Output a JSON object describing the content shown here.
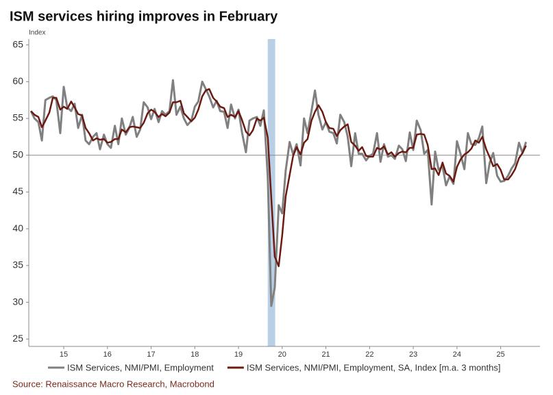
{
  "chart_data": {
    "type": "line",
    "title": "ISM services hiring improves in February",
    "y_axis_label": "Index",
    "source": "Source: Renaissance Macro Research, Macrobond",
    "legend": "bottom",
    "x": [
      2014.75,
      2014.83,
      2014.92,
      2015,
      2015.08,
      2015.17,
      2015.25,
      2015.33,
      2015.42,
      2015.5,
      2015.58,
      2015.67,
      2015.75,
      2015.83,
      2015.92,
      2016,
      2016.08,
      2016.17,
      2016.25,
      2016.33,
      2016.42,
      2016.5,
      2016.58,
      2016.67,
      2016.75,
      2016.83,
      2016.92,
      2017,
      2017.08,
      2017.17,
      2017.25,
      2017.33,
      2017.42,
      2017.5,
      2017.58,
      2017.67,
      2017.75,
      2017.83,
      2017.92,
      2018,
      2018.08,
      2018.17,
      2018.25,
      2018.33,
      2018.42,
      2018.5,
      2018.58,
      2018.67,
      2018.75,
      2018.83,
      2018.92,
      2019,
      2019.08,
      2019.17,
      2019.25,
      2019.33,
      2019.42,
      2019.5,
      2019.58,
      2019.67,
      2019.75,
      2019.83,
      2019.92,
      2020,
      2020.08,
      2020.17,
      2020.25,
      2020.33,
      2020.42,
      2020.5,
      2020.58,
      2020.67,
      2020.75,
      2020.83,
      2020.92,
      2021,
      2021.08,
      2021.17,
      2021.25,
      2021.33,
      2021.42,
      2021.5,
      2021.58,
      2021.67,
      2021.75,
      2021.83,
      2021.92,
      2022,
      2022.08,
      2022.17,
      2022.25,
      2022.33,
      2022.42,
      2022.5,
      2022.58,
      2022.67,
      2022.75,
      2022.83,
      2022.92,
      2023,
      2023.08,
      2023.17,
      2023.25,
      2023.33,
      2023.42,
      2023.5,
      2023.58,
      2023.67,
      2023.75,
      2023.83,
      2023.92,
      2024,
      2024.08,
      2024.17,
      2024.25,
      2024.33,
      2024.42,
      2024.5,
      2024.58,
      2024.67,
      2024.75,
      2024.83,
      2024.92,
      2025,
      2025.08,
      2025.17,
      2025.25,
      2025.33,
      2025.42,
      2025.5,
      2025.58,
      2025.67,
      2025.75,
      2025.83,
      2025.92,
      2026,
      2026.08
    ],
    "series": [
      {
        "name": "ISM Services, NMI/PMI, Employment",
        "color": "#808080",
        "values": [
          56,
          55,
          54.5,
          52,
          57.5,
          57.8,
          58,
          57.5,
          53,
          59.3,
          56.5,
          56,
          57,
          53.7,
          55.5,
          52,
          51.5,
          52.5,
          53,
          50.8,
          52.8,
          51.5,
          51,
          54,
          51.5,
          55,
          52.8,
          53.7,
          55.2,
          52.5,
          53.5,
          57.2,
          56.5,
          54.9,
          56.3,
          54.5,
          56,
          55.5,
          56,
          60.2,
          55.5,
          56.6,
          55,
          54.1,
          54.7,
          56.6,
          57.3,
          60,
          59,
          58,
          56.5,
          57.4,
          56,
          55.9,
          53.7,
          56.9,
          55,
          56.2,
          53.1,
          50.4,
          54.7,
          55,
          55.2,
          54,
          56.1,
          47,
          29.5,
          32,
          43.2,
          42.1,
          47.9,
          51.8,
          50.1,
          51.5,
          48.6,
          55,
          53,
          56,
          58.8,
          55.5,
          53.5,
          54.5,
          53.2,
          53,
          51.6,
          55.5,
          54.5,
          52.5,
          48.5,
          53,
          50.2,
          50.2,
          49.3,
          49.9,
          50.2,
          53,
          49.1,
          51.5,
          49.8,
          50,
          49.5,
          51.3,
          50.8,
          49.2,
          53.1,
          50.7,
          54.7,
          53.4,
          50.2,
          50.7,
          43.3,
          50.5,
          48,
          48.5,
          45.9,
          47.1,
          46.1,
          51.9,
          50.2,
          48.1,
          53,
          51.5,
          51.4,
          52.3,
          53.9,
          46.2,
          49,
          50.3,
          47.2,
          46.4,
          46.5,
          47.2,
          48.2,
          48.9,
          51.7,
          50.3,
          51.8
        ]
      },
      {
        "name": "ISM Services, NMI/PMI, Employment, SA, Index [m.a. 3 months]",
        "color": "#6b1a12",
        "values": [
          56,
          55.5,
          55.2,
          53.8,
          54.7,
          55.8,
          57.8,
          57.8,
          56.2,
          56.6,
          56.3,
          57.3,
          56.5,
          55.6,
          55.4,
          53.7,
          53,
          52,
          52.3,
          52.1,
          52.2,
          51.7,
          51.8,
          52.2,
          52.2,
          53.5,
          53.1,
          53.8,
          53.9,
          53.8,
          53.7,
          54.4,
          55.7,
          56.2,
          55.9,
          55.2,
          55.6,
          55.3,
          55.8,
          57.2,
          57.2,
          57.4,
          55.7,
          55.2,
          54.6,
          55.1,
          56.2,
          58,
          58.8,
          59,
          57.8,
          57.3,
          56.6,
          56.4,
          55.2,
          55.5,
          55.2,
          56,
          54.8,
          53.2,
          52.7,
          53.4,
          55,
          54.7,
          55.1,
          52.4,
          44.2,
          36.2,
          34.9,
          39.1,
          44.4,
          47.3,
          49.9,
          51.1,
          50.1,
          51.7,
          52.2,
          54.7,
          55.9,
          56.8,
          55.9,
          54.5,
          53.7,
          53.6,
          52.6,
          53.4,
          53.9,
          54.2,
          51.8,
          51.3,
          50.6,
          51.1,
          49.9,
          49.8,
          49.8,
          51,
          50.8,
          51.2,
          50.1,
          50.4,
          49.8,
          50.3,
          50.5,
          50.4,
          51,
          51,
          52.8,
          52.9,
          52.8,
          51.4,
          48.1,
          48.2,
          47.3,
          49,
          47.5,
          47.2,
          46.4,
          48.4,
          49.4,
          50.1,
          50.4,
          50.9,
          52,
          51.7,
          52.5,
          50.8,
          49.7,
          48.5,
          48.8,
          48,
          46.7,
          46.7,
          47.3,
          48.1,
          49.6,
          50.3,
          51.3
        ]
      }
    ],
    "xlim": [
      2014.7,
      2026.4
    ],
    "xticks": [
      {
        "value": 2015.5,
        "label": "15"
      },
      {
        "value": 2016.5,
        "label": "16"
      },
      {
        "value": 2017.5,
        "label": "17"
      },
      {
        "value": 2018.5,
        "label": "18"
      },
      {
        "value": 2019.5,
        "label": "19"
      },
      {
        "value": 2020.5,
        "label": "20"
      },
      {
        "value": 2021.5,
        "label": "21"
      },
      {
        "value": 2022.5,
        "label": "22"
      },
      {
        "value": 2023.5,
        "label": "23"
      },
      {
        "value": 2024.5,
        "label": "24"
      },
      {
        "value": 2025.5,
        "label": "25"
      }
    ],
    "ylim": [
      24,
      65.8
    ],
    "yticks": [
      25,
      30,
      35,
      40,
      45,
      50,
      55,
      60,
      65
    ],
    "reference_line": 50,
    "shaded_band": [
      2020.17,
      2020.34
    ],
    "shaded_color": "#b8cfe6",
    "grid": false
  }
}
